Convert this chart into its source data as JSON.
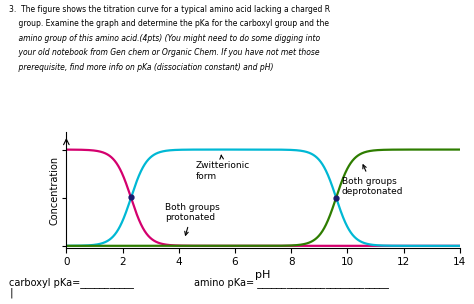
{
  "title_lines": [
    "3.  The figure shows the titration curve for a typical amino acid lacking a charged R",
    "    group. Examine the graph and determine the pKa for the carboxyl group and the",
    "    amino group of this amino acid.(4pts) (You might need to do some digging into",
    "    your old notebook from Gen chem or Organic Chem. If you have not met those",
    "    prerequisite, find more info on pKa (dissociation constant) and pH)"
  ],
  "xlabel": "pH",
  "ylabel": "Concentration",
  "xlim": [
    0,
    14
  ],
  "ylim": [
    -0.02,
    1.18
  ],
  "xticks": [
    0,
    2,
    4,
    6,
    8,
    10,
    12,
    14
  ],
  "curve1_color": "#d4006e",
  "curve2_color": "#00b8d4",
  "curve3_color": "#2e7d00",
  "dot_color": "#1a1a6e",
  "bg_color": "#ffffff",
  "bottom_text1": "carboxyl pKa=___________",
  "bottom_text2": "amino pKa= ___________________________",
  "ann1_text": "Zwitterionic\nform",
  "ann2_text": "Both groups\nprotonated",
  "ann3_text": "Both groups\ndeprotonated",
  "pka1": 2.3,
  "pka2": 9.6,
  "sigmoid_k": 3.5
}
